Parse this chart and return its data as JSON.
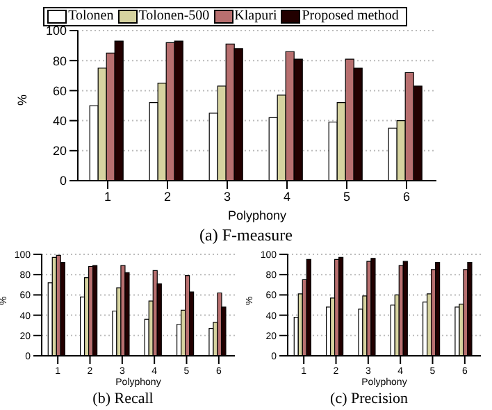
{
  "chart_data": [
    {
      "type": "bar",
      "title": "(a)  F-measure",
      "xlabel": "Polyphony",
      "ylabel": "%",
      "categories": [
        "1",
        "2",
        "3",
        "4",
        "5",
        "6"
      ],
      "ylim": [
        0,
        100
      ],
      "yticks": [
        0,
        20,
        40,
        60,
        80,
        100
      ],
      "grid": "y",
      "legend": "top",
      "series": [
        {
          "name": "Tolonen",
          "color": "#ffffff",
          "values": [
            50,
            52,
            45,
            42,
            39,
            35
          ]
        },
        {
          "name": "Tolonen-500",
          "color": "#d6d3a0",
          "values": [
            75,
            65,
            63,
            57,
            52,
            40
          ]
        },
        {
          "name": "Klapuri",
          "color": "#b86f6f",
          "values": [
            85,
            92,
            91,
            86,
            81,
            72
          ]
        },
        {
          "name": "Proposed method",
          "color": "#220000",
          "values": [
            93,
            93,
            88,
            81,
            75,
            63
          ]
        }
      ]
    },
    {
      "type": "bar",
      "title": "(b)  Recall",
      "xlabel": "Polyphony",
      "ylabel": "%",
      "categories": [
        "1",
        "2",
        "3",
        "4",
        "5",
        "6"
      ],
      "ylim": [
        0,
        100
      ],
      "yticks": [
        0,
        20,
        40,
        60,
        80,
        100
      ],
      "grid": "y",
      "legend": false,
      "series": [
        {
          "color": "#ffffff",
          "values": [
            72,
            58,
            44,
            36,
            31,
            27
          ]
        },
        {
          "color": "#d6d3a0",
          "values": [
            97,
            77,
            67,
            54,
            45,
            33
          ]
        },
        {
          "color": "#b86f6f",
          "values": [
            99,
            88,
            89,
            84,
            79,
            62
          ]
        },
        {
          "color": "#220000",
          "values": [
            92,
            89,
            82,
            71,
            63,
            48
          ]
        }
      ]
    },
    {
      "type": "bar",
      "title": "(c)  Precision",
      "xlabel": "Polyphony",
      "ylabel": "%",
      "categories": [
        "1",
        "2",
        "3",
        "4",
        "5",
        "6"
      ],
      "ylim": [
        0,
        100
      ],
      "yticks": [
        0,
        20,
        40,
        60,
        80,
        100
      ],
      "grid": "y",
      "legend": false,
      "series": [
        {
          "color": "#ffffff",
          "values": [
            38,
            48,
            46,
            50,
            53,
            48
          ]
        },
        {
          "color": "#d6d3a0",
          "values": [
            61,
            57,
            59,
            60,
            61,
            51
          ]
        },
        {
          "color": "#b86f6f",
          "values": [
            75,
            95,
            93,
            89,
            85,
            85
          ]
        },
        {
          "color": "#220000",
          "values": [
            95,
            97,
            96,
            93,
            92,
            92
          ]
        }
      ]
    }
  ]
}
